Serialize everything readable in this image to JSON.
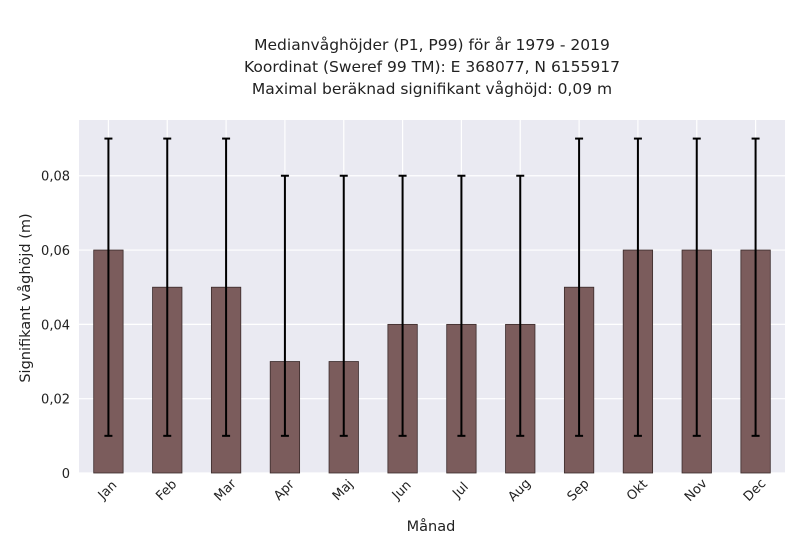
{
  "chart_data": {
    "type": "bar",
    "title_lines": [
      "Medianvåghöjder (P1, P99) för år 1979 - 2019",
      "Koordinat (Sweref 99 TM): E 368077, N 6155917",
      "Maximal beräknad signifikant våghöjd: 0,09 m"
    ],
    "xlabel": "Månad",
    "ylabel": "Signifikant våghöjd (m)",
    "categories": [
      "Jan",
      "Feb",
      "Mar",
      "Apr",
      "Maj",
      "Jun",
      "Jul",
      "Aug",
      "Sep",
      "Okt",
      "Nov",
      "Dec"
    ],
    "values": [
      0.06,
      0.05,
      0.05,
      0.03,
      0.03,
      0.04,
      0.04,
      0.04,
      0.05,
      0.06,
      0.06,
      0.06
    ],
    "error_low": [
      0.01,
      0.01,
      0.01,
      0.01,
      0.01,
      0.01,
      0.01,
      0.01,
      0.01,
      0.01,
      0.01,
      0.01
    ],
    "error_high": [
      0.09,
      0.09,
      0.09,
      0.08,
      0.08,
      0.08,
      0.08,
      0.08,
      0.09,
      0.09,
      0.09,
      0.09
    ],
    "ylim": [
      0,
      0.095
    ],
    "yticks": [
      0,
      0.02,
      0.04,
      0.06,
      0.08
    ],
    "ytick_labels": [
      "0",
      "0,02",
      "0,04",
      "0,06",
      "0,08"
    ],
    "grid": true,
    "colors": {
      "bar": "#7b5c5c",
      "bar_edge": "#3a2a2a",
      "error": "#000000",
      "plot_bg": "#eaeaf2",
      "grid": "#ffffff"
    }
  }
}
